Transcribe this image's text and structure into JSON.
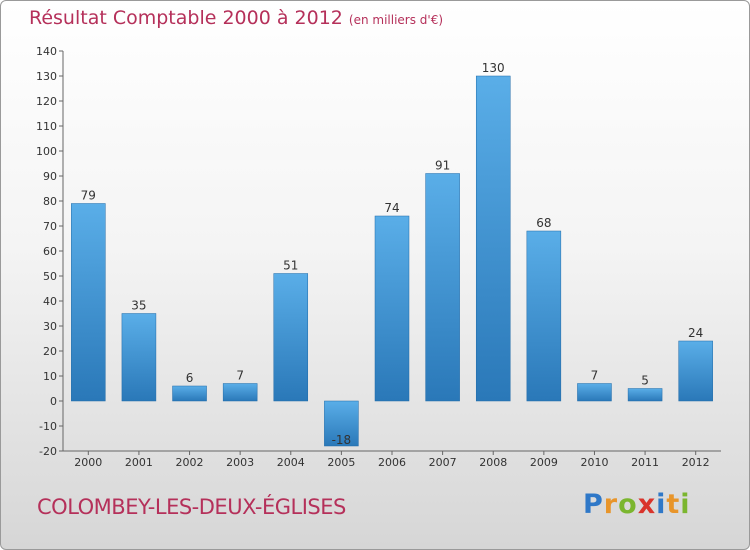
{
  "header": {
    "title": "Résultat Comptable 2000 à 2012",
    "subtitle": "(en milliers d'€)"
  },
  "footer": {
    "municipality": "COLOMBEY-LES-DEUX-ÉGLISES",
    "brand": "Proxiti",
    "brand_letters": [
      {
        "ch": "P",
        "color": "#2f78c8"
      },
      {
        "ch": "r",
        "color": "#e8952a"
      },
      {
        "ch": "o",
        "color": "#7bb62f"
      },
      {
        "ch": "x",
        "color": "#d9342b"
      },
      {
        "ch": "i",
        "color": "#2f78c8"
      },
      {
        "ch": "t",
        "color": "#e8952a"
      },
      {
        "ch": "i",
        "color": "#7bb62f"
      }
    ]
  },
  "chart_data": {
    "type": "bar",
    "title": "Résultat Comptable 2000 à 2012",
    "subtitle": "(en milliers d'€)",
    "categories": [
      "2000",
      "2001",
      "2002",
      "2003",
      "2004",
      "2005",
      "2006",
      "2007",
      "2008",
      "2009",
      "2010",
      "2011",
      "2012"
    ],
    "values": [
      79,
      35,
      6,
      7,
      51,
      -18,
      74,
      91,
      130,
      68,
      7,
      5,
      24
    ],
    "ylim": [
      -20,
      140
    ],
    "yticks": [
      -20,
      -10,
      0,
      10,
      20,
      30,
      40,
      50,
      60,
      70,
      80,
      90,
      100,
      110,
      120,
      130,
      140
    ],
    "xlabel": "",
    "ylabel": "",
    "grid": false,
    "colors": {
      "bar_top": "#5aaee8",
      "bar_bottom": "#2a78b8",
      "axis": "#666666"
    }
  }
}
